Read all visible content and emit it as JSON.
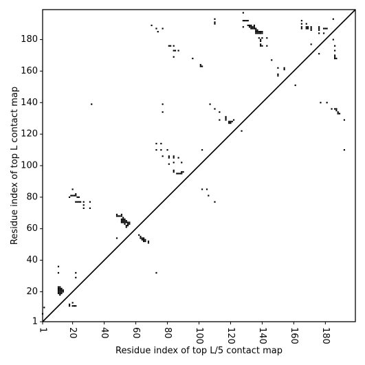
{
  "chart_data": {
    "type": "scatter",
    "title": "",
    "xlabel": "Residue index of top L/5 contact map",
    "ylabel": "Residue index of top L contact map",
    "xlim": [
      1,
      199
    ],
    "ylim": [
      1,
      199
    ],
    "xticks": [
      1,
      20,
      40,
      60,
      80,
      100,
      120,
      140,
      160,
      180
    ],
    "xtick_labels": [
      "1",
      "20",
      "40",
      "60",
      "80",
      "100",
      "120",
      "140",
      "160",
      "180"
    ],
    "yticks": [
      1,
      20,
      40,
      60,
      80,
      100,
      120,
      140,
      160,
      180
    ],
    "ytick_labels": [
      "1",
      "20",
      "40",
      "60",
      "80",
      "100",
      "120",
      "140",
      "160",
      "180"
    ],
    "diagonal": true,
    "grid": false,
    "marker_color": "#000000",
    "series": [
      {
        "values": [
          [
            1,
            6
          ],
          [
            2,
            10
          ],
          [
            11,
            36
          ],
          [
            11,
            32
          ],
          [
            11,
            23
          ],
          [
            11,
            22
          ],
          [
            11,
            21
          ],
          [
            11,
            20
          ],
          [
            11,
            19
          ],
          [
            12,
            23
          ],
          [
            12,
            22
          ],
          [
            12,
            21
          ],
          [
            12,
            20
          ],
          [
            12,
            19
          ],
          [
            12,
            18
          ],
          [
            13,
            22
          ],
          [
            13,
            21
          ],
          [
            13,
            20
          ],
          [
            13,
            19
          ],
          [
            14,
            21
          ],
          [
            14,
            20
          ],
          [
            18,
            12
          ],
          [
            18,
            11
          ],
          [
            20,
            13
          ],
          [
            20,
            11
          ],
          [
            21,
            11
          ],
          [
            22,
            11
          ],
          [
            22,
            32
          ],
          [
            22,
            29
          ],
          [
            18,
            80
          ],
          [
            19,
            81
          ],
          [
            20,
            81
          ],
          [
            20,
            85
          ],
          [
            21,
            81
          ],
          [
            22,
            81
          ],
          [
            22,
            82
          ],
          [
            23,
            80
          ],
          [
            24,
            80
          ],
          [
            22,
            77
          ],
          [
            23,
            77
          ],
          [
            24,
            77
          ],
          [
            25,
            77
          ],
          [
            27,
            77
          ],
          [
            27,
            75
          ],
          [
            27,
            73
          ],
          [
            31,
            77
          ],
          [
            31,
            73
          ],
          [
            32,
            139
          ],
          [
            48,
            54
          ],
          [
            48,
            69
          ],
          [
            48,
            68
          ],
          [
            49,
            68
          ],
          [
            50,
            68
          ],
          [
            51,
            69
          ],
          [
            51,
            68
          ],
          [
            51,
            66
          ],
          [
            51,
            65
          ],
          [
            51,
            64
          ],
          [
            52,
            67
          ],
          [
            52,
            66
          ],
          [
            52,
            65
          ],
          [
            52,
            64
          ],
          [
            53,
            66
          ],
          [
            53,
            65
          ],
          [
            53,
            64
          ],
          [
            53,
            63
          ],
          [
            54,
            65
          ],
          [
            54,
            64
          ],
          [
            54,
            62
          ],
          [
            54,
            61
          ],
          [
            55,
            64
          ],
          [
            55,
            63
          ],
          [
            55,
            62
          ],
          [
            56,
            64
          ],
          [
            56,
            63
          ],
          [
            62,
            56
          ],
          [
            63,
            55
          ],
          [
            63,
            54
          ],
          [
            64,
            54
          ],
          [
            64,
            53
          ],
          [
            65,
            54
          ],
          [
            65,
            53
          ],
          [
            65,
            52
          ],
          [
            66,
            53
          ],
          [
            66,
            52
          ],
          [
            68,
            52
          ],
          [
            68,
            51
          ],
          [
            73,
            32
          ],
          [
            70,
            189
          ],
          [
            73,
            187
          ],
          [
            74,
            185
          ],
          [
            77,
            187
          ],
          [
            77,
            139
          ],
          [
            77,
            134
          ],
          [
            81,
            176
          ],
          [
            82,
            176
          ],
          [
            84,
            176
          ],
          [
            84,
            173
          ],
          [
            84,
            169
          ],
          [
            85,
            173
          ],
          [
            87,
            173
          ],
          [
            73,
            114
          ],
          [
            73,
            110
          ],
          [
            76,
            114
          ],
          [
            76,
            110
          ],
          [
            77,
            106
          ],
          [
            80,
            110
          ],
          [
            81,
            106
          ],
          [
            81,
            105
          ],
          [
            81,
            101
          ],
          [
            84,
            106
          ],
          [
            84,
            105
          ],
          [
            84,
            102
          ],
          [
            84,
            97
          ],
          [
            84,
            96
          ],
          [
            86,
            95
          ],
          [
            87,
            95
          ],
          [
            87,
            105
          ],
          [
            88,
            95
          ],
          [
            89,
            102
          ],
          [
            89,
            96
          ],
          [
            89,
            95
          ],
          [
            90,
            96
          ],
          [
            96,
            168
          ],
          [
            101,
            164
          ],
          [
            101,
            163
          ],
          [
            102,
            163
          ],
          [
            102,
            110
          ],
          [
            102,
            85
          ],
          [
            105,
            85
          ],
          [
            106,
            81
          ],
          [
            107,
            139
          ],
          [
            110,
            193
          ],
          [
            110,
            191
          ],
          [
            110,
            190
          ],
          [
            110,
            136
          ],
          [
            110,
            77
          ],
          [
            113,
            134
          ],
          [
            113,
            129
          ],
          [
            117,
            131
          ],
          [
            117,
            130
          ],
          [
            117,
            129
          ],
          [
            119,
            128
          ],
          [
            119,
            127
          ],
          [
            120,
            128
          ],
          [
            120,
            127
          ],
          [
            121,
            128
          ],
          [
            122,
            129
          ],
          [
            127,
            122
          ],
          [
            128,
            197
          ],
          [
            128,
            192
          ],
          [
            128,
            188
          ],
          [
            129,
            192
          ],
          [
            130,
            192
          ],
          [
            131,
            192
          ],
          [
            131,
            189
          ],
          [
            132,
            189
          ],
          [
            132,
            188
          ],
          [
            133,
            189
          ],
          [
            133,
            188
          ],
          [
            133,
            187
          ],
          [
            134,
            188
          ],
          [
            134,
            187
          ],
          [
            135,
            189
          ],
          [
            135,
            188
          ],
          [
            135,
            187
          ],
          [
            136,
            187
          ],
          [
            136,
            186
          ],
          [
            136,
            185
          ],
          [
            136,
            184
          ],
          [
            137,
            186
          ],
          [
            137,
            185
          ],
          [
            137,
            184
          ],
          [
            138,
            185
          ],
          [
            138,
            184
          ],
          [
            138,
            181
          ],
          [
            139,
            185
          ],
          [
            139,
            184
          ],
          [
            139,
            180
          ],
          [
            139,
            179
          ],
          [
            139,
            177
          ],
          [
            139,
            176
          ],
          [
            140,
            185
          ],
          [
            140,
            184
          ],
          [
            140,
            181
          ],
          [
            140,
            176
          ],
          [
            143,
            181
          ],
          [
            143,
            176
          ],
          [
            146,
            167
          ],
          [
            150,
            162
          ],
          [
            150,
            158
          ],
          [
            150,
            157
          ],
          [
            154,
            162
          ],
          [
            154,
            161
          ],
          [
            161,
            151
          ],
          [
            165,
            192
          ],
          [
            165,
            190
          ],
          [
            165,
            188
          ],
          [
            165,
            187
          ],
          [
            168,
            190
          ],
          [
            168,
            188
          ],
          [
            168,
            187
          ],
          [
            169,
            188
          ],
          [
            169,
            187
          ],
          [
            171,
            188
          ],
          [
            171,
            187
          ],
          [
            171,
            186
          ],
          [
            171,
            177
          ],
          [
            176,
            188
          ],
          [
            176,
            187
          ],
          [
            176,
            186
          ],
          [
            176,
            184
          ],
          [
            176,
            171
          ],
          [
            177,
            140
          ],
          [
            179,
            187
          ],
          [
            179,
            184
          ],
          [
            180,
            187
          ],
          [
            181,
            187
          ],
          [
            181,
            140
          ],
          [
            184,
            136
          ],
          [
            185,
            193
          ],
          [
            185,
            180
          ],
          [
            186,
            176
          ],
          [
            186,
            173
          ],
          [
            186,
            170
          ],
          [
            186,
            169
          ],
          [
            186,
            168
          ],
          [
            187,
            168
          ],
          [
            186,
            136
          ],
          [
            187,
            136
          ],
          [
            187,
            135
          ],
          [
            188,
            134
          ],
          [
            188,
            133
          ],
          [
            189,
            133
          ],
          [
            192,
            129
          ],
          [
            192,
            110
          ]
        ]
      }
    ]
  }
}
